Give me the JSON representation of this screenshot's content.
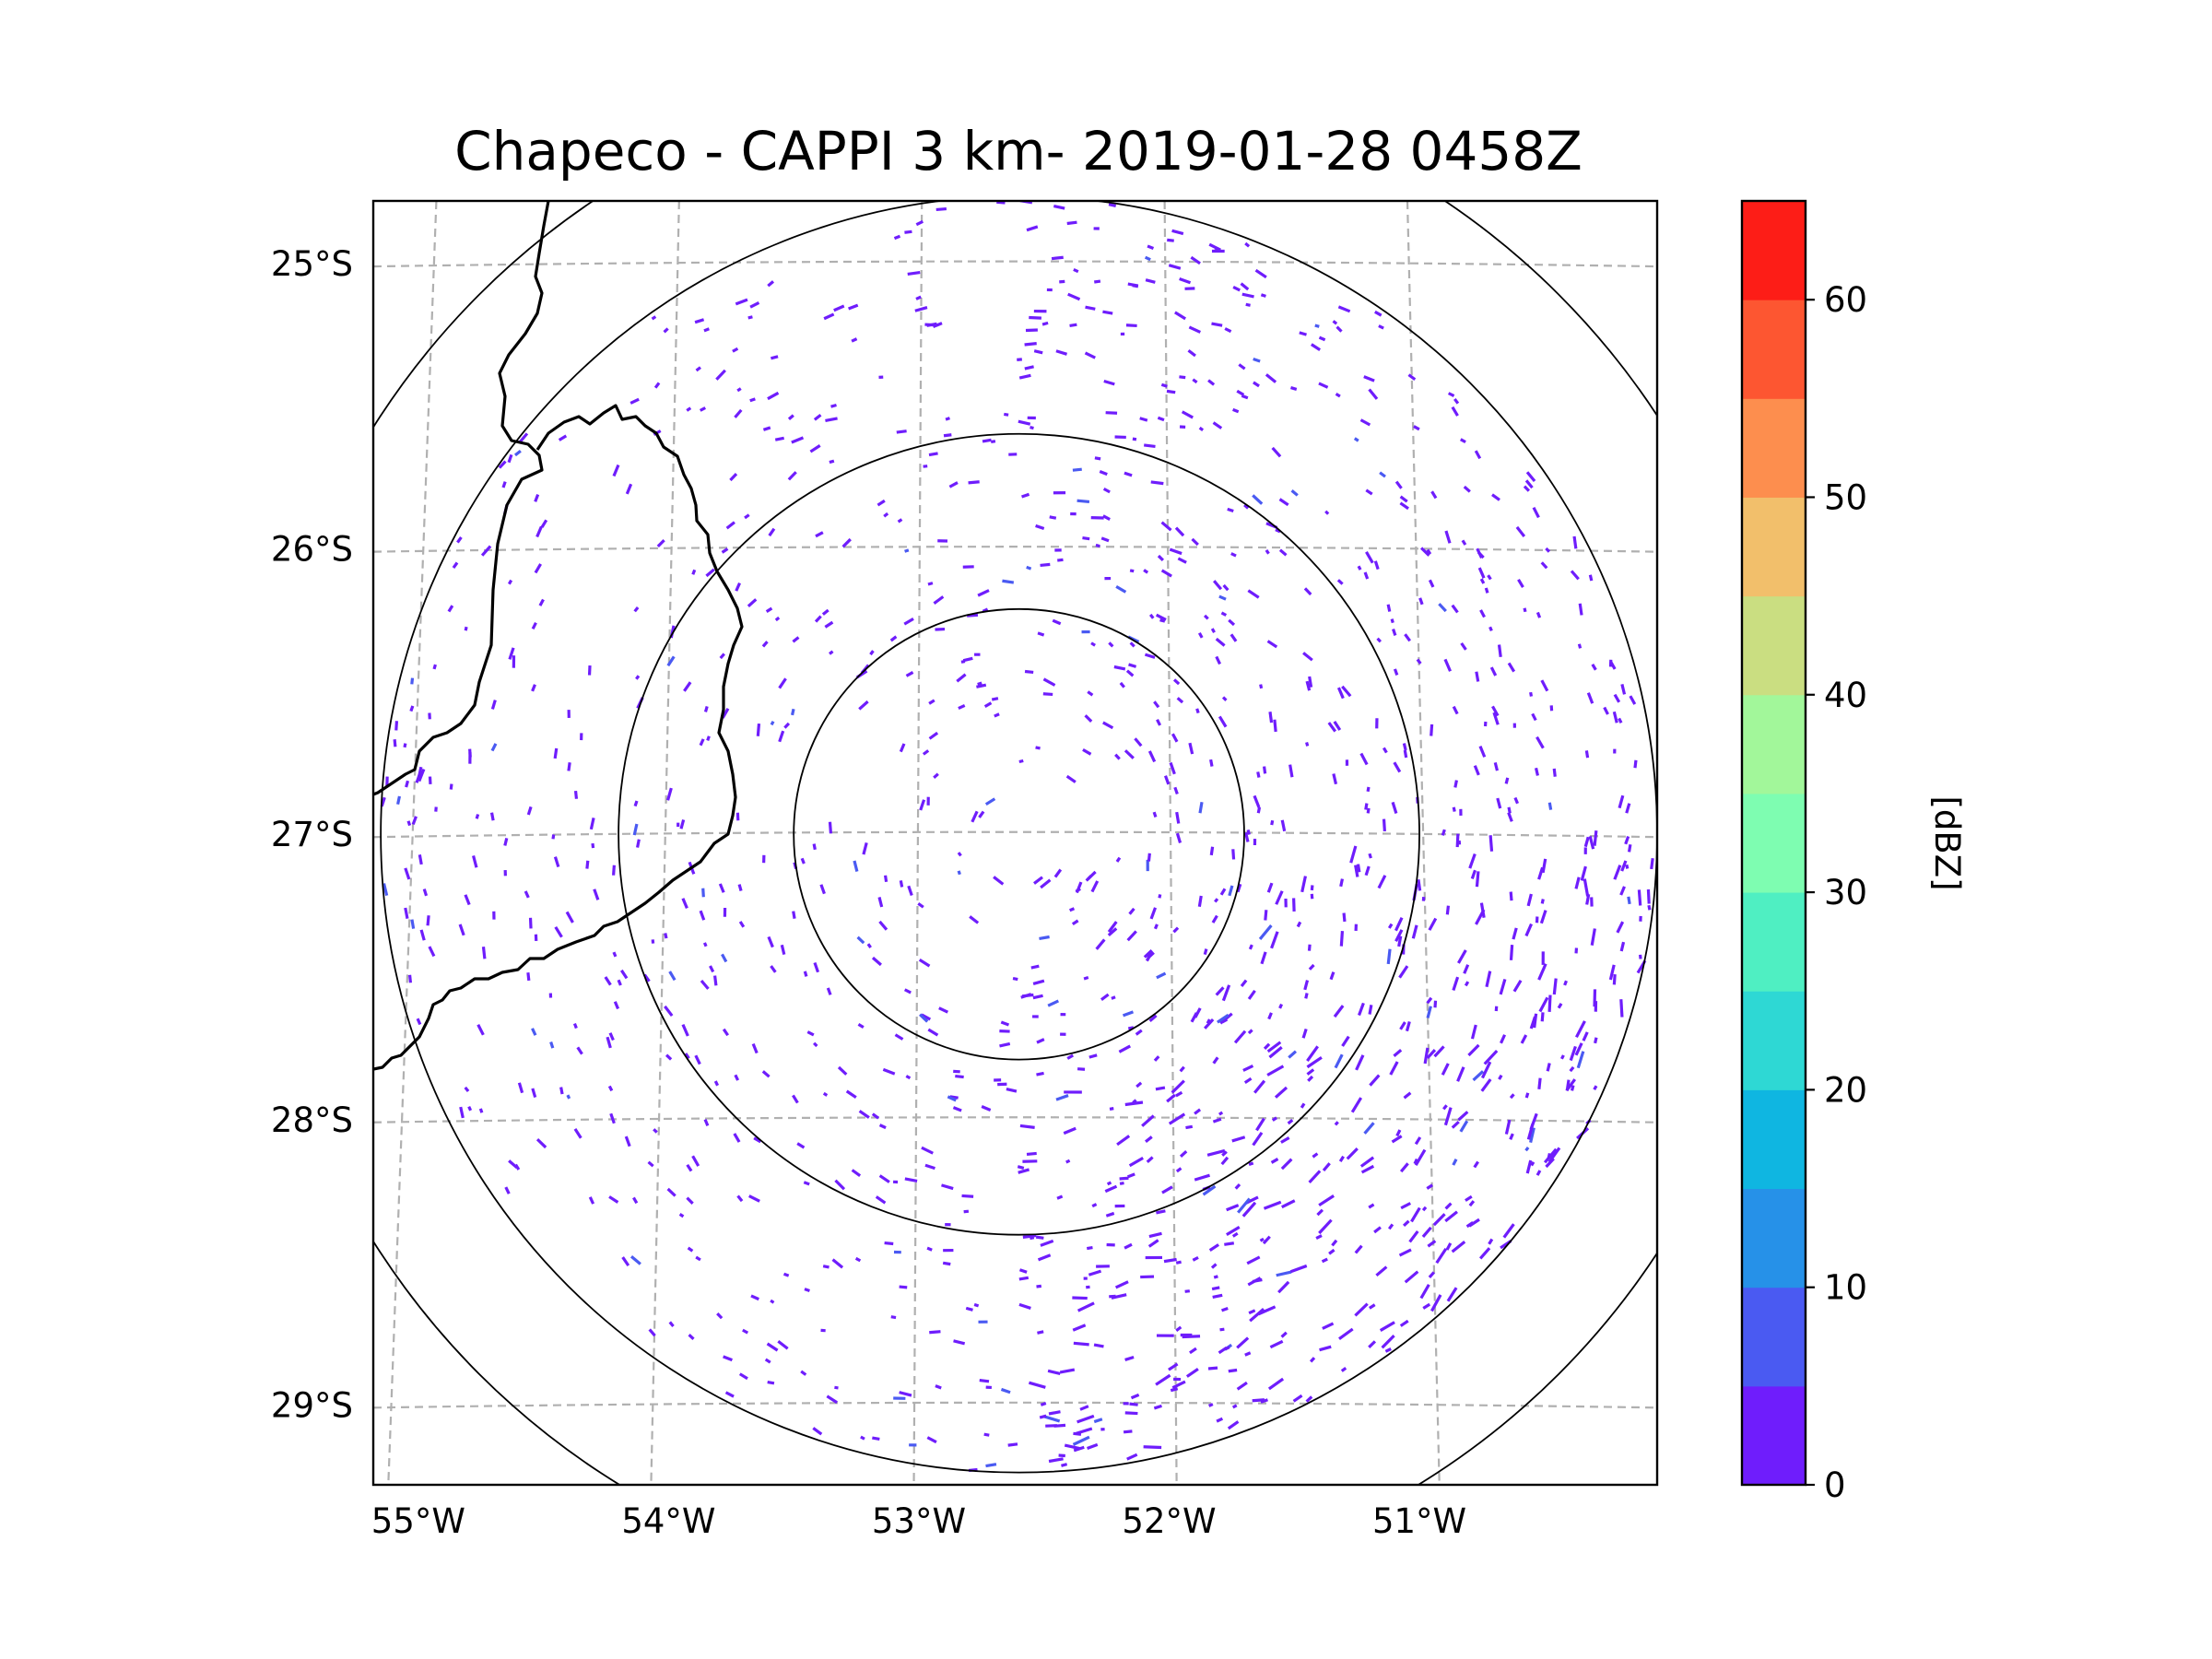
{
  "title": "Chapeco - CAPPI 3 km- 2019-01-28 0458Z",
  "map": {
    "lon_range": [
      -55.18,
      -50.05
    ],
    "lat_range": [
      -29.28,
      -24.78
    ],
    "latitude_ticks": [
      {
        "value": -25,
        "label": "25°S"
      },
      {
        "value": -26,
        "label": "26°S"
      },
      {
        "value": -27,
        "label": "27°S"
      },
      {
        "value": -28,
        "label": "28°S"
      },
      {
        "value": -29,
        "label": "29°S"
      }
    ],
    "longitude_ticks": [
      {
        "value": -55,
        "label": "55°W"
      },
      {
        "value": -54,
        "label": "54°W"
      },
      {
        "value": -53,
        "label": "53°W"
      },
      {
        "value": -52,
        "label": "52°W"
      },
      {
        "value": -51,
        "label": "51°W"
      }
    ],
    "radar_site": {
      "name": "Chapeco",
      "lon": -52.6,
      "lat": -27.0
    },
    "range_rings_deg": [
      0.9,
      1.6,
      2.55,
      3.05
    ]
  },
  "colorbar": {
    "label": "[dBZ]",
    "min": 0,
    "max": 65,
    "step": 5,
    "colors": [
      "#6f1dfc",
      "#4a5af2",
      "#2691e8",
      "#0fb6e1",
      "#2ed8d4",
      "#4fefc2",
      "#7efdb1",
      "#a2f79a",
      "#cade81",
      "#f2bf6b",
      "#fd8e4e",
      "#fd5631",
      "#fd1d17"
    ],
    "ticks": [
      {
        "value": 0,
        "label": "0"
      },
      {
        "value": 10,
        "label": "10"
      },
      {
        "value": 20,
        "label": "20"
      },
      {
        "value": 30,
        "label": "30"
      },
      {
        "value": 40,
        "label": "40"
      },
      {
        "value": 50,
        "label": "50"
      },
      {
        "value": 60,
        "label": "60"
      }
    ]
  }
}
